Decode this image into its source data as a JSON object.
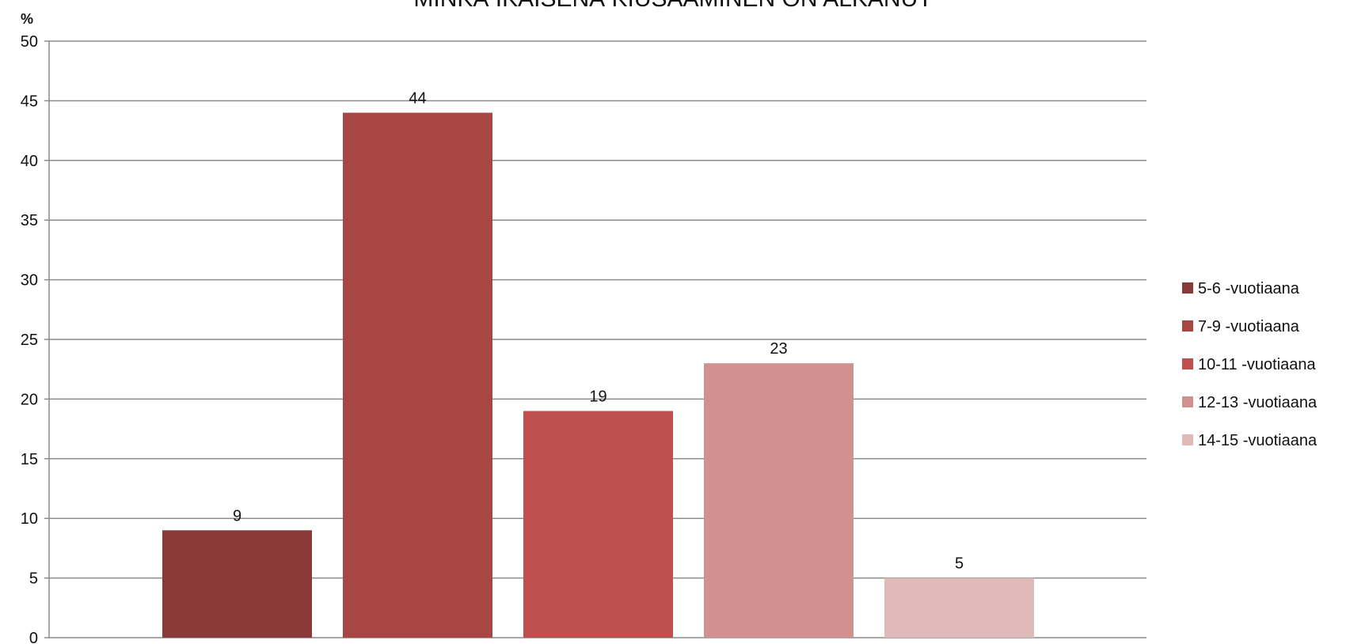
{
  "chart_data": {
    "type": "bar",
    "title": "MINKÄ IKÄISENÄ KIUSAAMINEN ON ALKANUT",
    "ylabel": "%",
    "xlabel": "",
    "ylim": [
      0,
      50
    ],
    "yticks": [
      0,
      5,
      10,
      15,
      20,
      25,
      30,
      35,
      40,
      45,
      50
    ],
    "grid": true,
    "legend_position": "right",
    "series": [
      {
        "name": "5-6 -vuotiaana",
        "value": 9,
        "color": "#8B3A3A"
      },
      {
        "name": "7-9 -vuotiaana",
        "value": 44,
        "color": "#A84643"
      },
      {
        "name": "10-11 -vuotiaana",
        "value": 19,
        "color": "#C0504D"
      },
      {
        "name": "12-13 -vuotiaana",
        "value": 23,
        "color": "#D19190"
      },
      {
        "name": "14-15 -vuotiaana",
        "value": 5,
        "color": "#E0BAB9"
      }
    ]
  }
}
